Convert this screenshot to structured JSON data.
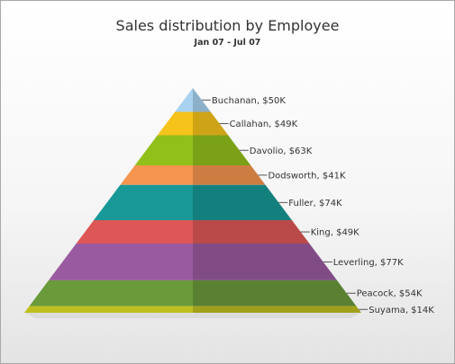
{
  "chart_data": {
    "type": "pyramid",
    "title": "Sales distribution by Employee",
    "subtitle": "Jan 07 - Jul 07",
    "unit_prefix": "$",
    "unit_suffix": "K",
    "legend": "none",
    "data": [
      {
        "label": "Buchanan",
        "value": 50,
        "text": "Buchanan, $50K",
        "color": "#a8d2f0"
      },
      {
        "label": "Callahan",
        "value": 49,
        "text": "Callahan, $49K",
        "color": "#f5c31a"
      },
      {
        "label": "Davolio",
        "value": 63,
        "text": "Davolio, $63K",
        "color": "#92c01a"
      },
      {
        "label": "Dodsworth",
        "value": 41,
        "text": "Dodsworth, $41K",
        "color": "#f5954f"
      },
      {
        "label": "Fuller",
        "value": 74,
        "text": "Fuller, $74K",
        "color": "#189896"
      },
      {
        "label": "King",
        "value": 49,
        "text": "King, $49K",
        "color": "#de5757"
      },
      {
        "label": "Leverling",
        "value": 77,
        "text": "Leverling, $77K",
        "color": "#9a5aa0"
      },
      {
        "label": "Peacock",
        "value": 54,
        "text": "Peacock, $54K",
        "color": "#6a9a3a"
      },
      {
        "label": "Suyama",
        "value": 14,
        "text": "Suyama, $14K",
        "color": "#bfbf1f"
      }
    ]
  }
}
